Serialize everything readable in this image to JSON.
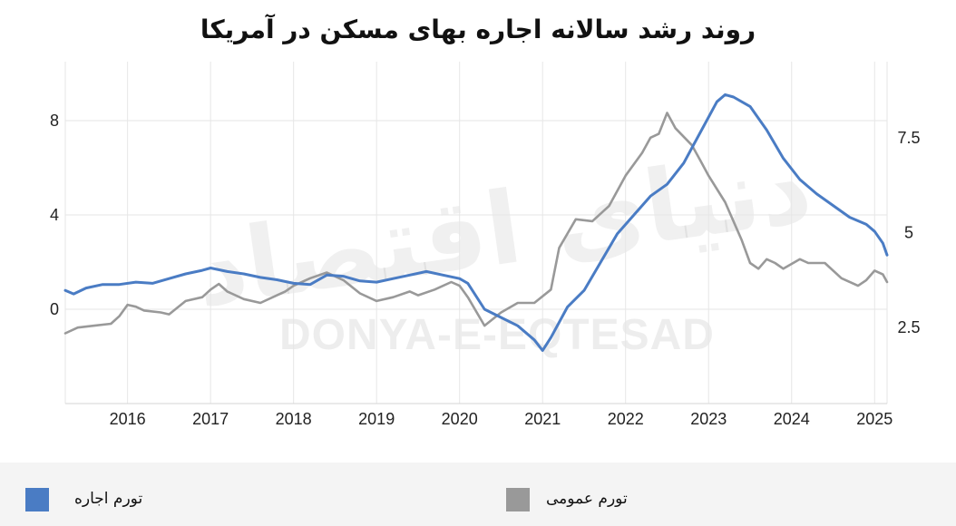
{
  "title": "روند رشد سالانه اجاره بهای مسکن در آمریکا",
  "watermark": {
    "persian": "دنیای اقتصاد",
    "latin": "DONYA-E-EQTESAD"
  },
  "legend": [
    {
      "label": "تورم اجاره",
      "color": "#4a7cc4"
    },
    {
      "label": "تورم عمومی",
      "color": "#999999"
    }
  ],
  "chart_data": {
    "type": "line",
    "x_axis": {
      "ticks": [
        "2016",
        "2017",
        "2018",
        "2019",
        "2020",
        "2021",
        "2022",
        "2023",
        "2024",
        "2025"
      ],
      "range": [
        2015.25,
        2025.15
      ]
    },
    "y_left": {
      "ticks": [
        "0",
        "4",
        "8"
      ],
      "range": [
        -4,
        10.5
      ]
    },
    "y_right": {
      "ticks": [
        "2.5",
        "5",
        "7.5"
      ],
      "range": [
        0.5,
        9.5
      ]
    },
    "grid": true,
    "legend_position": "bottom",
    "series": [
      {
        "name": "تورم اجاره",
        "axis": "left",
        "color": "#4a7cc4",
        "points": [
          [
            2015.25,
            0.8
          ],
          [
            2015.35,
            0.65
          ],
          [
            2015.5,
            0.9
          ],
          [
            2015.7,
            1.05
          ],
          [
            2015.9,
            1.05
          ],
          [
            2016.1,
            1.15
          ],
          [
            2016.3,
            1.1
          ],
          [
            2016.5,
            1.3
          ],
          [
            2016.7,
            1.5
          ],
          [
            2016.9,
            1.65
          ],
          [
            2017.0,
            1.75
          ],
          [
            2017.2,
            1.6
          ],
          [
            2017.4,
            1.5
          ],
          [
            2017.6,
            1.35
          ],
          [
            2017.8,
            1.25
          ],
          [
            2018.0,
            1.1
          ],
          [
            2018.2,
            1.05
          ],
          [
            2018.4,
            1.45
          ],
          [
            2018.6,
            1.4
          ],
          [
            2018.8,
            1.2
          ],
          [
            2019.0,
            1.15
          ],
          [
            2019.2,
            1.3
          ],
          [
            2019.4,
            1.45
          ],
          [
            2019.6,
            1.6
          ],
          [
            2019.8,
            1.45
          ],
          [
            2020.0,
            1.3
          ],
          [
            2020.1,
            1.1
          ],
          [
            2020.3,
            0.0
          ],
          [
            2020.5,
            -0.35
          ],
          [
            2020.7,
            -0.7
          ],
          [
            2020.9,
            -1.3
          ],
          [
            2021.0,
            -1.75
          ],
          [
            2021.1,
            -1.2
          ],
          [
            2021.3,
            0.1
          ],
          [
            2021.5,
            0.8
          ],
          [
            2021.7,
            2.0
          ],
          [
            2021.9,
            3.2
          ],
          [
            2022.1,
            4.0
          ],
          [
            2022.3,
            4.8
          ],
          [
            2022.5,
            5.3
          ],
          [
            2022.7,
            6.2
          ],
          [
            2022.9,
            7.5
          ],
          [
            2023.1,
            8.8
          ],
          [
            2023.2,
            9.1
          ],
          [
            2023.3,
            9.0
          ],
          [
            2023.5,
            8.6
          ],
          [
            2023.7,
            7.6
          ],
          [
            2023.9,
            6.4
          ],
          [
            2024.1,
            5.5
          ],
          [
            2024.3,
            4.9
          ],
          [
            2024.5,
            4.4
          ],
          [
            2024.7,
            3.9
          ],
          [
            2024.9,
            3.6
          ],
          [
            2025.0,
            3.3
          ],
          [
            2025.1,
            2.8
          ],
          [
            2025.15,
            2.3
          ]
        ]
      },
      {
        "name": "تورم عمومی",
        "axis": "right",
        "color": "#999999",
        "points": [
          [
            2015.25,
            2.35
          ],
          [
            2015.4,
            2.5
          ],
          [
            2015.6,
            2.55
          ],
          [
            2015.8,
            2.6
          ],
          [
            2015.9,
            2.8
          ],
          [
            2016.0,
            3.1
          ],
          [
            2016.1,
            3.05
          ],
          [
            2016.2,
            2.95
          ],
          [
            2016.4,
            2.9
          ],
          [
            2016.5,
            2.85
          ],
          [
            2016.7,
            3.2
          ],
          [
            2016.9,
            3.3
          ],
          [
            2017.0,
            3.5
          ],
          [
            2017.1,
            3.65
          ],
          [
            2017.2,
            3.45
          ],
          [
            2017.4,
            3.25
          ],
          [
            2017.6,
            3.15
          ],
          [
            2017.8,
            3.35
          ],
          [
            2017.9,
            3.45
          ],
          [
            2018.0,
            3.6
          ],
          [
            2018.2,
            3.8
          ],
          [
            2018.4,
            3.95
          ],
          [
            2018.6,
            3.75
          ],
          [
            2018.8,
            3.4
          ],
          [
            2019.0,
            3.2
          ],
          [
            2019.2,
            3.3
          ],
          [
            2019.4,
            3.45
          ],
          [
            2019.5,
            3.35
          ],
          [
            2019.7,
            3.5
          ],
          [
            2019.9,
            3.7
          ],
          [
            2020.0,
            3.6
          ],
          [
            2020.1,
            3.3
          ],
          [
            2020.3,
            2.55
          ],
          [
            2020.5,
            2.9
          ],
          [
            2020.7,
            3.15
          ],
          [
            2020.9,
            3.15
          ],
          [
            2021.1,
            3.5
          ],
          [
            2021.2,
            4.6
          ],
          [
            2021.4,
            5.35
          ],
          [
            2021.6,
            5.3
          ],
          [
            2021.8,
            5.7
          ],
          [
            2022.0,
            6.5
          ],
          [
            2022.2,
            7.1
          ],
          [
            2022.3,
            7.5
          ],
          [
            2022.4,
            7.6
          ],
          [
            2022.5,
            8.15
          ],
          [
            2022.6,
            7.75
          ],
          [
            2022.8,
            7.3
          ],
          [
            2022.9,
            6.9
          ],
          [
            2023.0,
            6.5
          ],
          [
            2023.2,
            5.8
          ],
          [
            2023.4,
            4.8
          ],
          [
            2023.5,
            4.2
          ],
          [
            2023.6,
            4.05
          ],
          [
            2023.7,
            4.3
          ],
          [
            2023.8,
            4.2
          ],
          [
            2023.9,
            4.05
          ],
          [
            2024.1,
            4.3
          ],
          [
            2024.2,
            4.2
          ],
          [
            2024.4,
            4.2
          ],
          [
            2024.6,
            3.8
          ],
          [
            2024.8,
            3.6
          ],
          [
            2024.9,
            3.75
          ],
          [
            2025.0,
            4.0
          ],
          [
            2025.1,
            3.9
          ],
          [
            2025.15,
            3.7
          ]
        ]
      }
    ]
  }
}
